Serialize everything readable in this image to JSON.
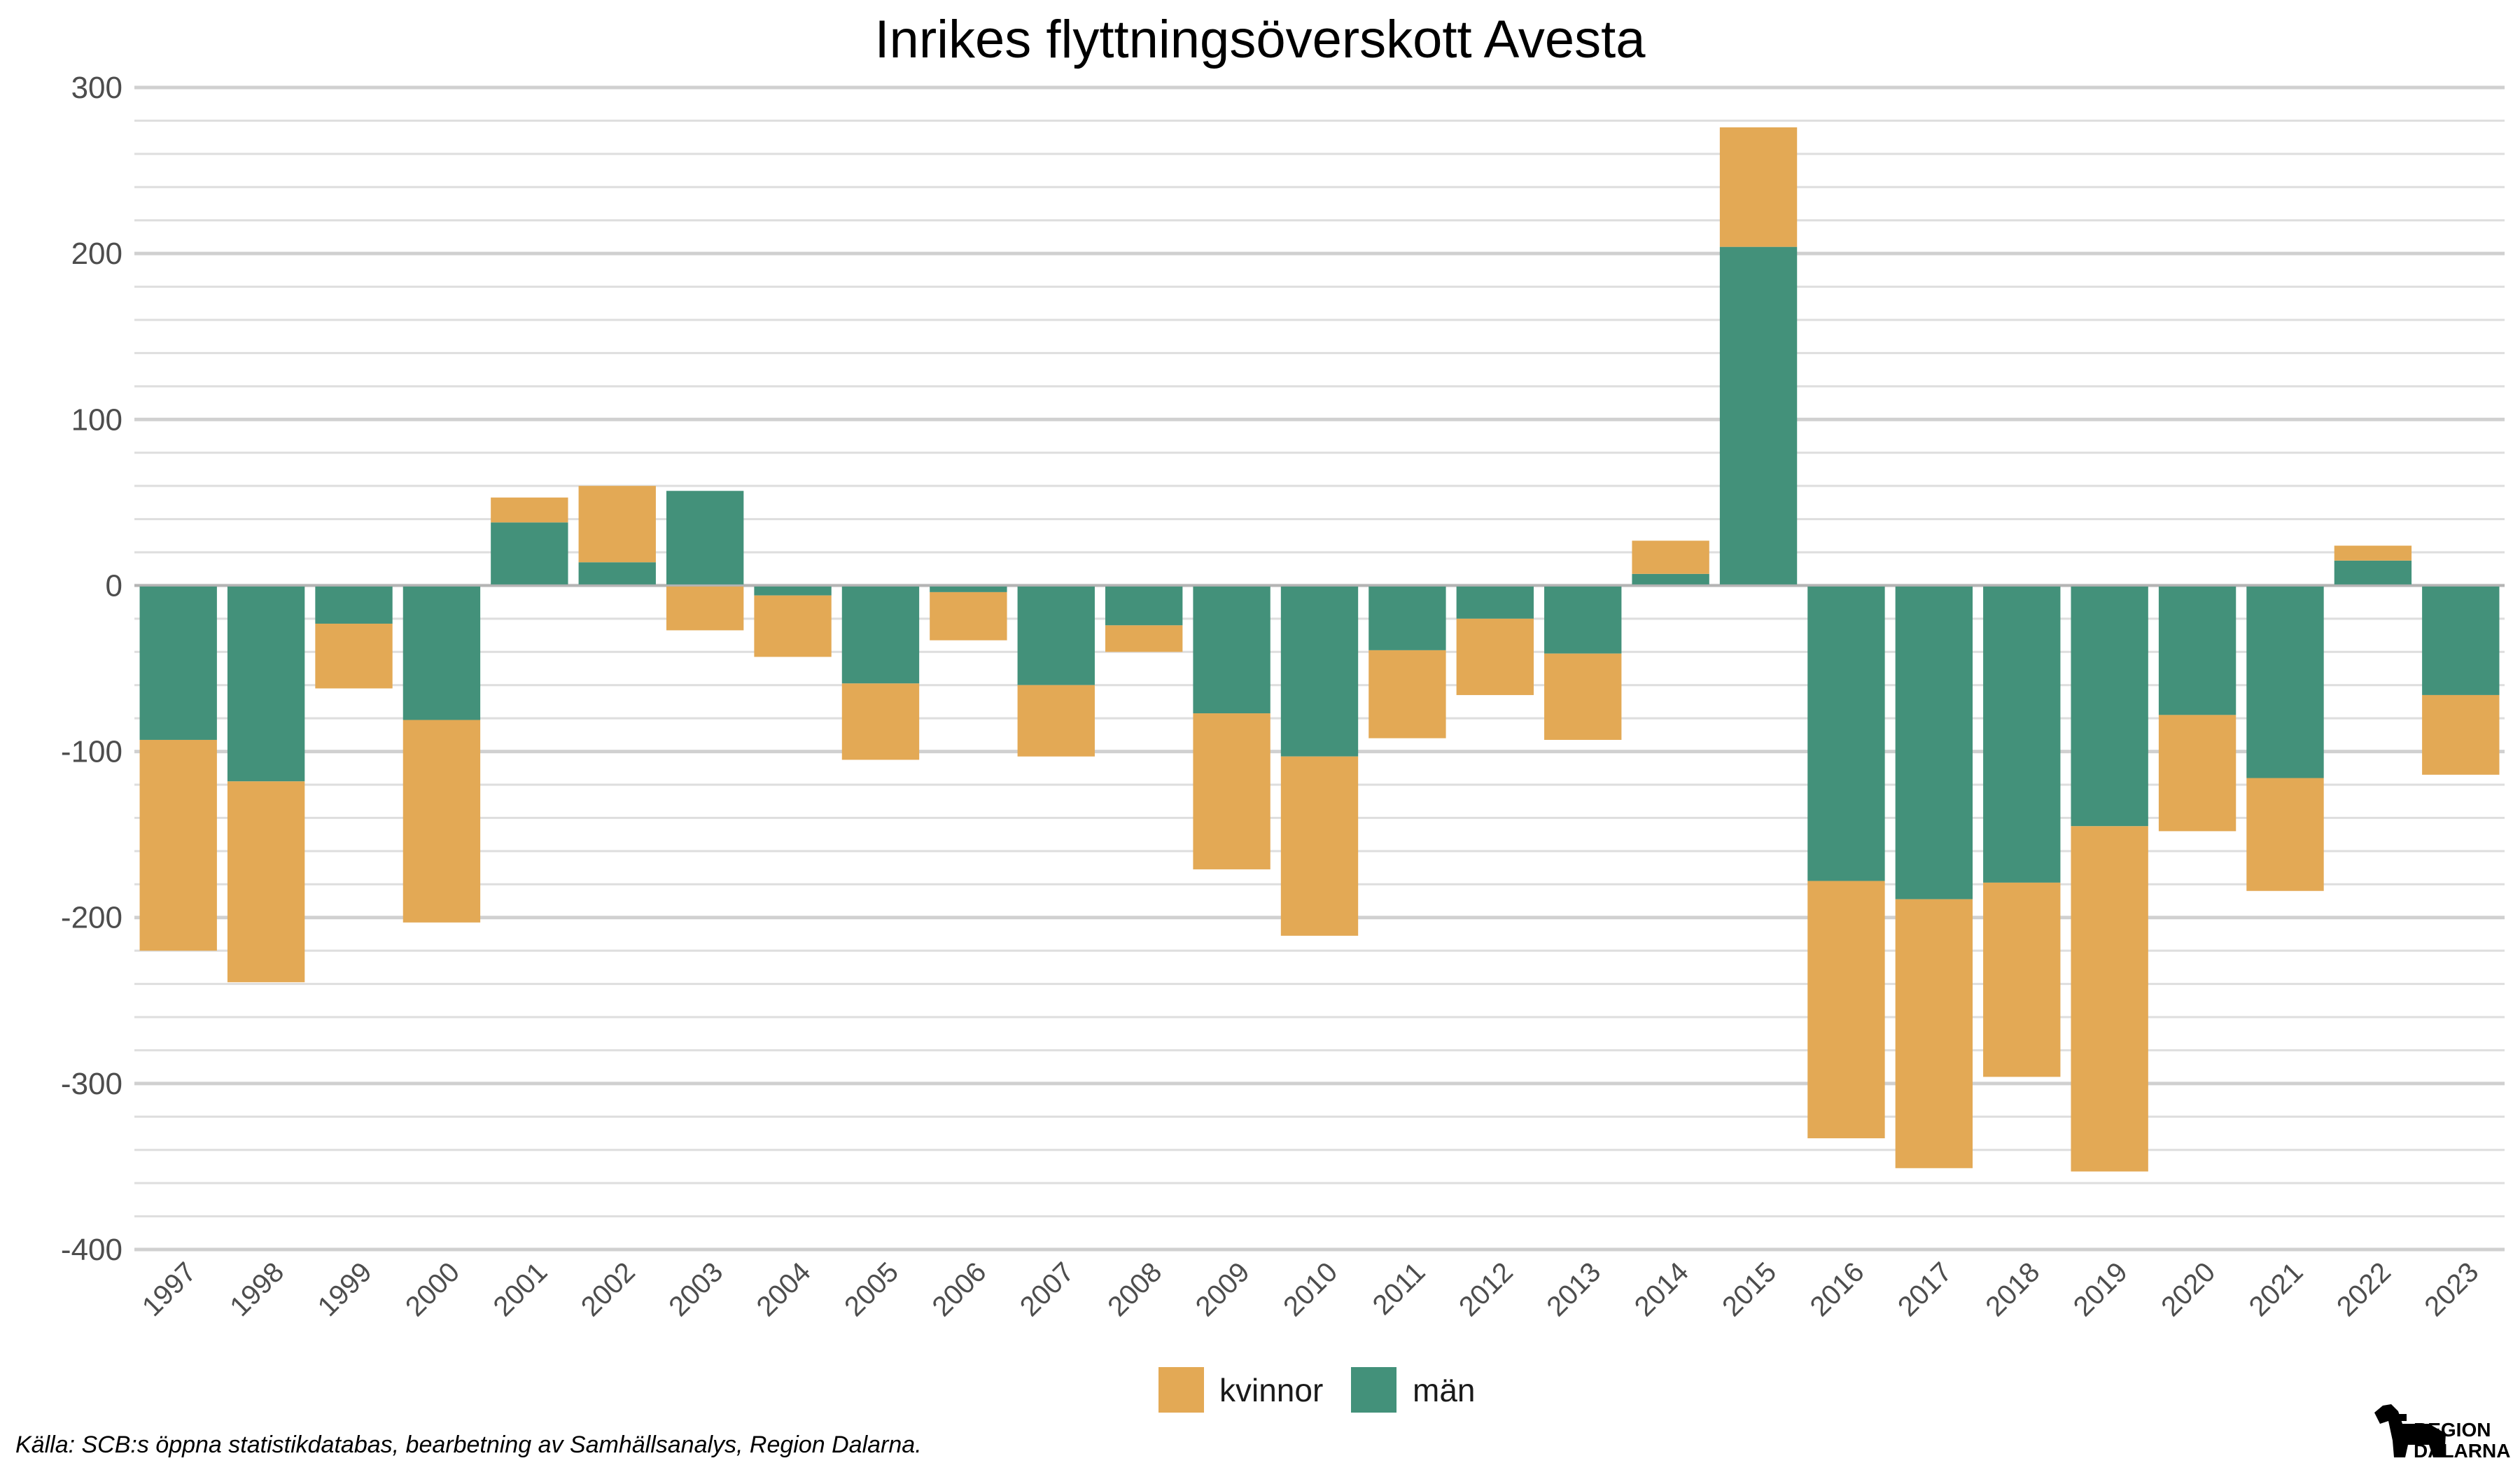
{
  "chart_data": {
    "type": "bar",
    "stacked": true,
    "title": "Inrikes flyttningsöverskott Avesta",
    "xlabel": "",
    "ylabel": "",
    "ylim": [
      -400,
      300
    ],
    "yticks": [
      "300",
      "200",
      "100",
      "0",
      "-100",
      "-200",
      "-300",
      "-400"
    ],
    "ytick_values": [
      300,
      200,
      100,
      0,
      -100,
      -200,
      -300,
      -400
    ],
    "grid": true,
    "legend_position": "bottom",
    "categories": [
      "1997",
      "1998",
      "1999",
      "2000",
      "2001",
      "2002",
      "2003",
      "2004",
      "2005",
      "2006",
      "2007",
      "2008",
      "2009",
      "2010",
      "2011",
      "2012",
      "2013",
      "2014",
      "2015",
      "2016",
      "2017",
      "2018",
      "2019",
      "2020",
      "2021",
      "2022",
      "2023"
    ],
    "series": [
      {
        "name": "män",
        "color": "#43917a",
        "values": [
          -93,
          -118,
          -23,
          -81,
          38,
          14,
          57,
          -6,
          -59,
          -4,
          -60,
          -24,
          -77,
          -103,
          -39,
          -20,
          -41,
          7,
          204,
          -178,
          -189,
          -179,
          -145,
          -78,
          -116,
          15,
          -66
        ]
      },
      {
        "name": "kvinnor",
        "color": "#e3a955",
        "values": [
          -127,
          -121,
          -39,
          -122,
          15,
          46,
          -27,
          -37,
          -46,
          -29,
          -43,
          -16,
          -94,
          -108,
          -53,
          -46,
          -52,
          20,
          72,
          -155,
          -162,
          -117,
          -208,
          -70,
          -68,
          9,
          -48
        ]
      }
    ],
    "legend": [
      "kvinnor",
      "män"
    ]
  },
  "source_note": "Källa: SCB:s öppna statistikdatabas, bearbetning av Samhällsanalys, Region Dalarna.",
  "logo": {
    "line1": "REGION",
    "line2": "DALARNA",
    "icon": "dalahorse-icon"
  }
}
